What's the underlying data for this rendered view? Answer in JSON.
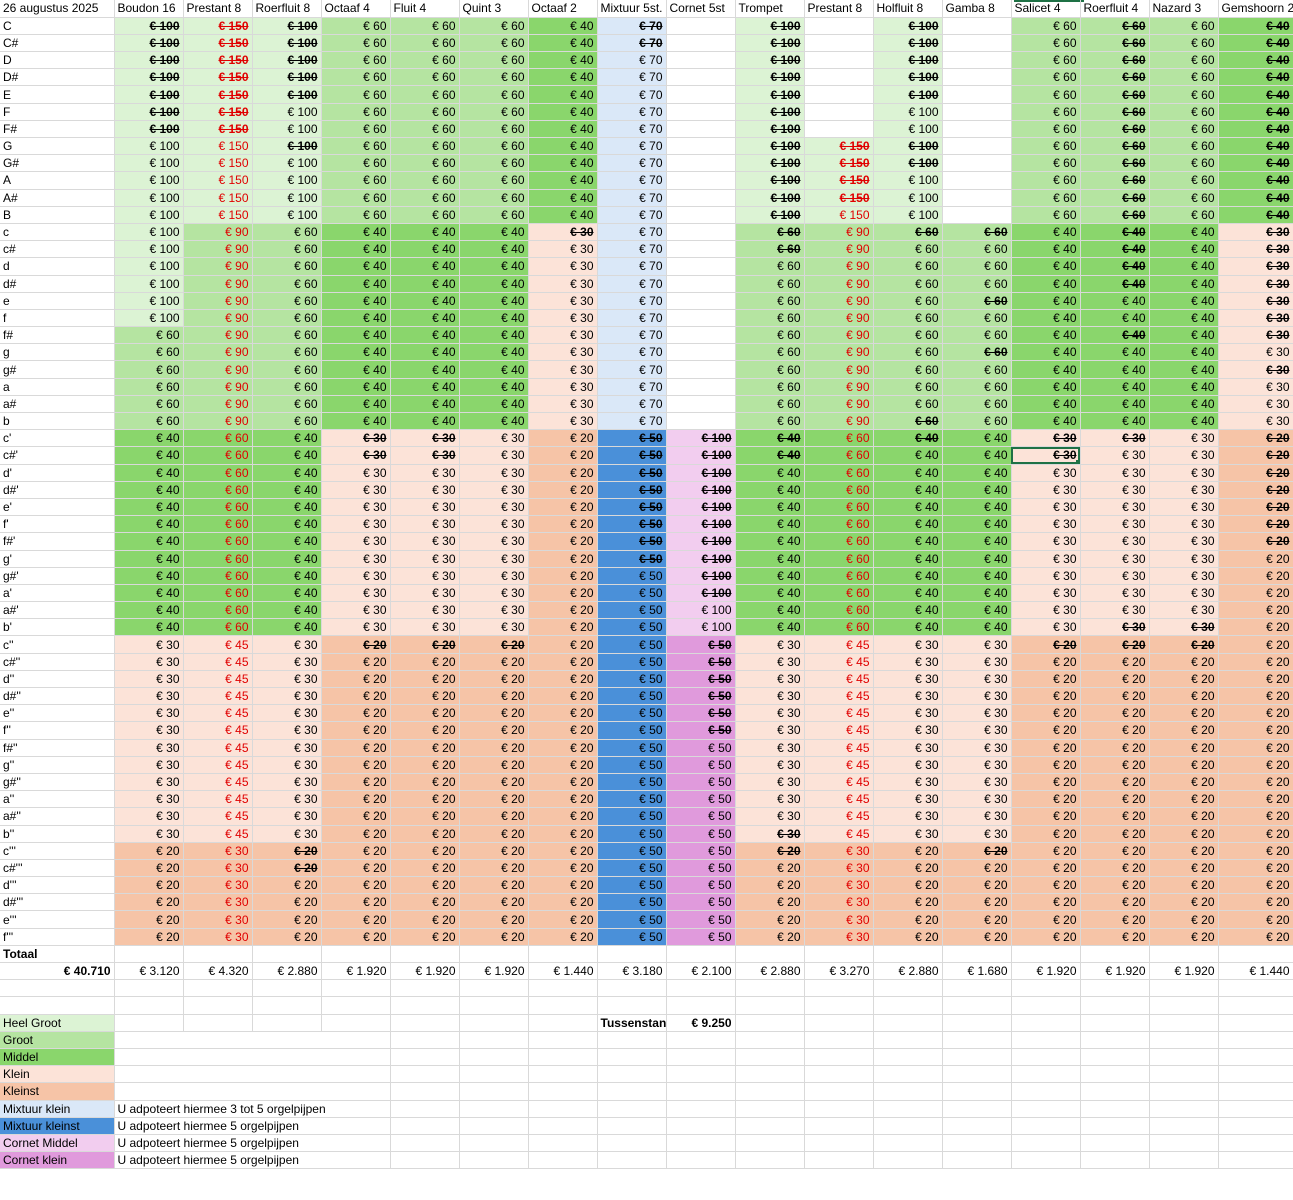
{
  "date": "26 augustus 2025",
  "stops": [
    {
      "name": "Boudon 16",
      "total": "€ 3.120"
    },
    {
      "name": "Prestant 8",
      "total": "€ 4.320"
    },
    {
      "name": "Roerfluit 8",
      "total": "€ 2.880"
    },
    {
      "name": "Octaaf 4",
      "total": "€ 1.920"
    },
    {
      "name": "Fluit 4",
      "total": "€ 1.920"
    },
    {
      "name": "Quint 3",
      "total": "€ 1.920"
    },
    {
      "name": "Octaaf 2",
      "total": "€ 1.440"
    },
    {
      "name": "Mixtuur 5st.",
      "total": "€ 3.180"
    },
    {
      "name": "Cornet 5st",
      "total": "€ 2.100"
    },
    {
      "name": "Trompet",
      "total": "€ 2.880"
    },
    {
      "name": "Prestant 8",
      "total": "€ 3.270"
    },
    {
      "name": "Holfluit 8",
      "total": "€ 2.880"
    },
    {
      "name": "Gamba 8",
      "total": "€ 1.680"
    },
    {
      "name": "Salicet 4",
      "total": "€ 1.920"
    },
    {
      "name": "Roerfluit 4",
      "total": "€ 1.920"
    },
    {
      "name": "Nazard 3",
      "total": "€ 1.920"
    },
    {
      "name": "Gemshoorn 2",
      "total": "€ 1.440"
    }
  ],
  "notes": [
    "C",
    "C#",
    "D",
    "D#",
    "E",
    "F",
    "F#",
    "G",
    "G#",
    "A",
    "A#",
    "B",
    "c",
    "c#",
    "d",
    "d#",
    "e",
    "f",
    "f#",
    "g",
    "g#",
    "a",
    "a#",
    "b",
    "c'",
    "c#'",
    "d'",
    "d#'",
    "e'",
    "f'",
    "f#'",
    "g'",
    "g#'",
    "a'",
    "a#'",
    "b'",
    "c''",
    "c#''",
    "d''",
    "d#''",
    "e''",
    "f''",
    "f#''",
    "g''",
    "g#''",
    "a''",
    "a#''",
    "b''",
    "c'''",
    "c#'''",
    "d'''",
    "d#'''",
    "e'''",
    "f'''"
  ],
  "rows": [
    [
      "€ 100",
      "€ 150",
      "€ 100",
      "€ 60",
      "€ 60",
      "€ 60",
      "€ 40",
      "€ 70",
      "",
      "€ 100",
      "",
      "€ 100",
      "",
      "€ 60",
      "€ 60",
      "€ 60",
      "€ 40"
    ],
    [
      "€ 100",
      "€ 150",
      "€ 100",
      "€ 60",
      "€ 60",
      "€ 60",
      "€ 40",
      "€ 70",
      "",
      "€ 100",
      "",
      "€ 100",
      "",
      "€ 60",
      "€ 60",
      "€ 60",
      "€ 40"
    ],
    [
      "€ 100",
      "€ 150",
      "€ 100",
      "€ 60",
      "€ 60",
      "€ 60",
      "€ 40",
      "€ 70",
      "",
      "€ 100",
      "",
      "€ 100",
      "",
      "€ 60",
      "€ 60",
      "€ 60",
      "€ 40"
    ],
    [
      "€ 100",
      "€ 150",
      "€ 100",
      "€ 60",
      "€ 60",
      "€ 60",
      "€ 40",
      "€ 70",
      "",
      "€ 100",
      "",
      "€ 100",
      "",
      "€ 60",
      "€ 60",
      "€ 60",
      "€ 40"
    ],
    [
      "€ 100",
      "€ 150",
      "€ 100",
      "€ 60",
      "€ 60",
      "€ 60",
      "€ 40",
      "€ 70",
      "",
      "€ 100",
      "",
      "€ 100",
      "",
      "€ 60",
      "€ 60",
      "€ 60",
      "€ 40"
    ],
    [
      "€ 100",
      "€ 150",
      "€ 100",
      "€ 60",
      "€ 60",
      "€ 60",
      "€ 40",
      "€ 70",
      "",
      "€ 100",
      "",
      "€ 100",
      "",
      "€ 60",
      "€ 60",
      "€ 60",
      "€ 40"
    ],
    [
      "€ 100",
      "€ 150",
      "€ 100",
      "€ 60",
      "€ 60",
      "€ 60",
      "€ 40",
      "€ 70",
      "",
      "€ 100",
      "",
      "€ 100",
      "",
      "€ 60",
      "€ 60",
      "€ 60",
      "€ 40"
    ],
    [
      "€ 100",
      "€ 150",
      "€ 100",
      "€ 60",
      "€ 60",
      "€ 60",
      "€ 40",
      "€ 70",
      "",
      "€ 100",
      "€ 150",
      "€ 100",
      "",
      "€ 60",
      "€ 60",
      "€ 60",
      "€ 40"
    ],
    [
      "€ 100",
      "€ 150",
      "€ 100",
      "€ 60",
      "€ 60",
      "€ 60",
      "€ 40",
      "€ 70",
      "",
      "€ 100",
      "€ 150",
      "€ 100",
      "",
      "€ 60",
      "€ 60",
      "€ 60",
      "€ 40"
    ],
    [
      "€ 100",
      "€ 150",
      "€ 100",
      "€ 60",
      "€ 60",
      "€ 60",
      "€ 40",
      "€ 70",
      "",
      "€ 100",
      "€ 150",
      "€ 100",
      "",
      "€ 60",
      "€ 60",
      "€ 60",
      "€ 40"
    ],
    [
      "€ 100",
      "€ 150",
      "€ 100",
      "€ 60",
      "€ 60",
      "€ 60",
      "€ 40",
      "€ 70",
      "",
      "€ 100",
      "€ 150",
      "€ 100",
      "",
      "€ 60",
      "€ 60",
      "€ 60",
      "€ 40"
    ],
    [
      "€ 100",
      "€ 150",
      "€ 100",
      "€ 60",
      "€ 60",
      "€ 60",
      "€ 40",
      "€ 70",
      "",
      "€ 100",
      "€ 150",
      "€ 100",
      "",
      "€ 60",
      "€ 60",
      "€ 60",
      "€ 40"
    ],
    [
      "€ 100",
      "€ 90",
      "€ 60",
      "€ 40",
      "€ 40",
      "€ 40",
      "€ 30",
      "€ 70",
      "",
      "€ 60",
      "€ 90",
      "€ 60",
      "€ 60",
      "€ 40",
      "€ 40",
      "€ 40",
      "€ 30"
    ],
    [
      "€ 100",
      "€ 90",
      "€ 60",
      "€ 40",
      "€ 40",
      "€ 40",
      "€ 30",
      "€ 70",
      "",
      "€ 60",
      "€ 90",
      "€ 60",
      "€ 60",
      "€ 40",
      "€ 40",
      "€ 40",
      "€ 30"
    ],
    [
      "€ 100",
      "€ 90",
      "€ 60",
      "€ 40",
      "€ 40",
      "€ 40",
      "€ 30",
      "€ 70",
      "",
      "€ 60",
      "€ 90",
      "€ 60",
      "€ 60",
      "€ 40",
      "€ 40",
      "€ 40",
      "€ 30"
    ],
    [
      "€ 100",
      "€ 90",
      "€ 60",
      "€ 40",
      "€ 40",
      "€ 40",
      "€ 30",
      "€ 70",
      "",
      "€ 60",
      "€ 90",
      "€ 60",
      "€ 60",
      "€ 40",
      "€ 40",
      "€ 40",
      "€ 30"
    ],
    [
      "€ 100",
      "€ 90",
      "€ 60",
      "€ 40",
      "€ 40",
      "€ 40",
      "€ 30",
      "€ 70",
      "",
      "€ 60",
      "€ 90",
      "€ 60",
      "€ 60",
      "€ 40",
      "€ 40",
      "€ 40",
      "€ 30"
    ],
    [
      "€ 100",
      "€ 90",
      "€ 60",
      "€ 40",
      "€ 40",
      "€ 40",
      "€ 30",
      "€ 70",
      "",
      "€ 60",
      "€ 90",
      "€ 60",
      "€ 60",
      "€ 40",
      "€ 40",
      "€ 40",
      "€ 30"
    ],
    [
      "€ 60",
      "€ 90",
      "€ 60",
      "€ 40",
      "€ 40",
      "€ 40",
      "€ 30",
      "€ 70",
      "",
      "€ 60",
      "€ 90",
      "€ 60",
      "€ 60",
      "€ 40",
      "€ 40",
      "€ 40",
      "€ 30"
    ],
    [
      "€ 60",
      "€ 90",
      "€ 60",
      "€ 40",
      "€ 40",
      "€ 40",
      "€ 30",
      "€ 70",
      "",
      "€ 60",
      "€ 90",
      "€ 60",
      "€ 60",
      "€ 40",
      "€ 40",
      "€ 40",
      "€ 30"
    ],
    [
      "€ 60",
      "€ 90",
      "€ 60",
      "€ 40",
      "€ 40",
      "€ 40",
      "€ 30",
      "€ 70",
      "",
      "€ 60",
      "€ 90",
      "€ 60",
      "€ 60",
      "€ 40",
      "€ 40",
      "€ 40",
      "€ 30"
    ],
    [
      "€ 60",
      "€ 90",
      "€ 60",
      "€ 40",
      "€ 40",
      "€ 40",
      "€ 30",
      "€ 70",
      "",
      "€ 60",
      "€ 90",
      "€ 60",
      "€ 60",
      "€ 40",
      "€ 40",
      "€ 40",
      "€ 30"
    ],
    [
      "€ 60",
      "€ 90",
      "€ 60",
      "€ 40",
      "€ 40",
      "€ 40",
      "€ 30",
      "€ 70",
      "",
      "€ 60",
      "€ 90",
      "€ 60",
      "€ 60",
      "€ 40",
      "€ 40",
      "€ 40",
      "€ 30"
    ],
    [
      "€ 60",
      "€ 90",
      "€ 60",
      "€ 40",
      "€ 40",
      "€ 40",
      "€ 30",
      "€ 70",
      "",
      "€ 60",
      "€ 90",
      "€ 60",
      "€ 60",
      "€ 40",
      "€ 40",
      "€ 40",
      "€ 30"
    ],
    [
      "€ 40",
      "€ 60",
      "€ 40",
      "€ 30",
      "€ 30",
      "€ 30",
      "€ 20",
      "€ 50",
      "€ 100",
      "€ 40",
      "€ 60",
      "€ 40",
      "€ 40",
      "€ 30",
      "€ 30",
      "€ 30",
      "€ 20"
    ],
    [
      "€ 40",
      "€ 60",
      "€ 40",
      "€ 30",
      "€ 30",
      "€ 30",
      "€ 20",
      "€ 50",
      "€ 100",
      "€ 40",
      "€ 60",
      "€ 40",
      "€ 40",
      "€ 30",
      "€ 30",
      "€ 30",
      "€ 20"
    ],
    [
      "€ 40",
      "€ 60",
      "€ 40",
      "€ 30",
      "€ 30",
      "€ 30",
      "€ 20",
      "€ 50",
      "€ 100",
      "€ 40",
      "€ 60",
      "€ 40",
      "€ 40",
      "€ 30",
      "€ 30",
      "€ 30",
      "€ 20"
    ],
    [
      "€ 40",
      "€ 60",
      "€ 40",
      "€ 30",
      "€ 30",
      "€ 30",
      "€ 20",
      "€ 50",
      "€ 100",
      "€ 40",
      "€ 60",
      "€ 40",
      "€ 40",
      "€ 30",
      "€ 30",
      "€ 30",
      "€ 20"
    ],
    [
      "€ 40",
      "€ 60",
      "€ 40",
      "€ 30",
      "€ 30",
      "€ 30",
      "€ 20",
      "€ 50",
      "€ 100",
      "€ 40",
      "€ 60",
      "€ 40",
      "€ 40",
      "€ 30",
      "€ 30",
      "€ 30",
      "€ 20"
    ],
    [
      "€ 40",
      "€ 60",
      "€ 40",
      "€ 30",
      "€ 30",
      "€ 30",
      "€ 20",
      "€ 50",
      "€ 100",
      "€ 40",
      "€ 60",
      "€ 40",
      "€ 40",
      "€ 30",
      "€ 30",
      "€ 30",
      "€ 20"
    ],
    [
      "€ 40",
      "€ 60",
      "€ 40",
      "€ 30",
      "€ 30",
      "€ 30",
      "€ 20",
      "€ 50",
      "€ 100",
      "€ 40",
      "€ 60",
      "€ 40",
      "€ 40",
      "€ 30",
      "€ 30",
      "€ 30",
      "€ 20"
    ],
    [
      "€ 40",
      "€ 60",
      "€ 40",
      "€ 30",
      "€ 30",
      "€ 30",
      "€ 20",
      "€ 50",
      "€ 100",
      "€ 40",
      "€ 60",
      "€ 40",
      "€ 40",
      "€ 30",
      "€ 30",
      "€ 30",
      "€ 20"
    ],
    [
      "€ 40",
      "€ 60",
      "€ 40",
      "€ 30",
      "€ 30",
      "€ 30",
      "€ 20",
      "€ 50",
      "€ 100",
      "€ 40",
      "€ 60",
      "€ 40",
      "€ 40",
      "€ 30",
      "€ 30",
      "€ 30",
      "€ 20"
    ],
    [
      "€ 40",
      "€ 60",
      "€ 40",
      "€ 30",
      "€ 30",
      "€ 30",
      "€ 20",
      "€ 50",
      "€ 100",
      "€ 40",
      "€ 60",
      "€ 40",
      "€ 40",
      "€ 30",
      "€ 30",
      "€ 30",
      "€ 20"
    ],
    [
      "€ 40",
      "€ 60",
      "€ 40",
      "€ 30",
      "€ 30",
      "€ 30",
      "€ 20",
      "€ 50",
      "€ 100",
      "€ 40",
      "€ 60",
      "€ 40",
      "€ 40",
      "€ 30",
      "€ 30",
      "€ 30",
      "€ 20"
    ],
    [
      "€ 40",
      "€ 60",
      "€ 40",
      "€ 30",
      "€ 30",
      "€ 30",
      "€ 20",
      "€ 50",
      "€ 100",
      "€ 40",
      "€ 60",
      "€ 40",
      "€ 40",
      "€ 30",
      "€ 30",
      "€ 30",
      "€ 20"
    ],
    [
      "€ 30",
      "€ 45",
      "€ 30",
      "€ 20",
      "€ 20",
      "€ 20",
      "€ 20",
      "€ 50",
      "€ 50",
      "€ 30",
      "€ 45",
      "€ 30",
      "€ 30",
      "€ 20",
      "€ 20",
      "€ 20",
      "€ 20"
    ],
    [
      "€ 30",
      "€ 45",
      "€ 30",
      "€ 20",
      "€ 20",
      "€ 20",
      "€ 20",
      "€ 50",
      "€ 50",
      "€ 30",
      "€ 45",
      "€ 30",
      "€ 30",
      "€ 20",
      "€ 20",
      "€ 20",
      "€ 20"
    ],
    [
      "€ 30",
      "€ 45",
      "€ 30",
      "€ 20",
      "€ 20",
      "€ 20",
      "€ 20",
      "€ 50",
      "€ 50",
      "€ 30",
      "€ 45",
      "€ 30",
      "€ 30",
      "€ 20",
      "€ 20",
      "€ 20",
      "€ 20"
    ],
    [
      "€ 30",
      "€ 45",
      "€ 30",
      "€ 20",
      "€ 20",
      "€ 20",
      "€ 20",
      "€ 50",
      "€ 50",
      "€ 30",
      "€ 45",
      "€ 30",
      "€ 30",
      "€ 20",
      "€ 20",
      "€ 20",
      "€ 20"
    ],
    [
      "€ 30",
      "€ 45",
      "€ 30",
      "€ 20",
      "€ 20",
      "€ 20",
      "€ 20",
      "€ 50",
      "€ 50",
      "€ 30",
      "€ 45",
      "€ 30",
      "€ 30",
      "€ 20",
      "€ 20",
      "€ 20",
      "€ 20"
    ],
    [
      "€ 30",
      "€ 45",
      "€ 30",
      "€ 20",
      "€ 20",
      "€ 20",
      "€ 20",
      "€ 50",
      "€ 50",
      "€ 30",
      "€ 45",
      "€ 30",
      "€ 30",
      "€ 20",
      "€ 20",
      "€ 20",
      "€ 20"
    ],
    [
      "€ 30",
      "€ 45",
      "€ 30",
      "€ 20",
      "€ 20",
      "€ 20",
      "€ 20",
      "€ 50",
      "€ 50",
      "€ 30",
      "€ 45",
      "€ 30",
      "€ 30",
      "€ 20",
      "€ 20",
      "€ 20",
      "€ 20"
    ],
    [
      "€ 30",
      "€ 45",
      "€ 30",
      "€ 20",
      "€ 20",
      "€ 20",
      "€ 20",
      "€ 50",
      "€ 50",
      "€ 30",
      "€ 45",
      "€ 30",
      "€ 30",
      "€ 20",
      "€ 20",
      "€ 20",
      "€ 20"
    ],
    [
      "€ 30",
      "€ 45",
      "€ 30",
      "€ 20",
      "€ 20",
      "€ 20",
      "€ 20",
      "€ 50",
      "€ 50",
      "€ 30",
      "€ 45",
      "€ 30",
      "€ 30",
      "€ 20",
      "€ 20",
      "€ 20",
      "€ 20"
    ],
    [
      "€ 30",
      "€ 45",
      "€ 30",
      "€ 20",
      "€ 20",
      "€ 20",
      "€ 20",
      "€ 50",
      "€ 50",
      "€ 30",
      "€ 45",
      "€ 30",
      "€ 30",
      "€ 20",
      "€ 20",
      "€ 20",
      "€ 20"
    ],
    [
      "€ 30",
      "€ 45",
      "€ 30",
      "€ 20",
      "€ 20",
      "€ 20",
      "€ 20",
      "€ 50",
      "€ 50",
      "€ 30",
      "€ 45",
      "€ 30",
      "€ 30",
      "€ 20",
      "€ 20",
      "€ 20",
      "€ 20"
    ],
    [
      "€ 30",
      "€ 45",
      "€ 30",
      "€ 20",
      "€ 20",
      "€ 20",
      "€ 20",
      "€ 50",
      "€ 50",
      "€ 30",
      "€ 45",
      "€ 30",
      "€ 30",
      "€ 20",
      "€ 20",
      "€ 20",
      "€ 20"
    ],
    [
      "€ 20",
      "€ 30",
      "€ 20",
      "€ 20",
      "€ 20",
      "€ 20",
      "€ 20",
      "€ 50",
      "€ 50",
      "€ 20",
      "€ 30",
      "€ 20",
      "€ 20",
      "€ 20",
      "€ 20",
      "€ 20",
      "€ 20"
    ],
    [
      "€ 20",
      "€ 30",
      "€ 20",
      "€ 20",
      "€ 20",
      "€ 20",
      "€ 20",
      "€ 50",
      "€ 50",
      "€ 20",
      "€ 30",
      "€ 20",
      "€ 20",
      "€ 20",
      "€ 20",
      "€ 20",
      "€ 20"
    ],
    [
      "€ 20",
      "€ 30",
      "€ 20",
      "€ 20",
      "€ 20",
      "€ 20",
      "€ 20",
      "€ 50",
      "€ 50",
      "€ 20",
      "€ 30",
      "€ 20",
      "€ 20",
      "€ 20",
      "€ 20",
      "€ 20",
      "€ 20"
    ],
    [
      "€ 20",
      "€ 30",
      "€ 20",
      "€ 20",
      "€ 20",
      "€ 20",
      "€ 20",
      "€ 50",
      "€ 50",
      "€ 20",
      "€ 30",
      "€ 20",
      "€ 20",
      "€ 20",
      "€ 20",
      "€ 20",
      "€ 20"
    ],
    [
      "€ 20",
      "€ 30",
      "€ 20",
      "€ 20",
      "€ 20",
      "€ 20",
      "€ 20",
      "€ 50",
      "€ 50",
      "€ 20",
      "€ 30",
      "€ 20",
      "€ 20",
      "€ 20",
      "€ 20",
      "€ 20",
      "€ 20"
    ],
    [
      "€ 20",
      "€ 30",
      "€ 20",
      "€ 20",
      "€ 20",
      "€ 20",
      "€ 20",
      "€ 50",
      "€ 50",
      "€ 20",
      "€ 30",
      "€ 20",
      "€ 20",
      "€ 20",
      "€ 20",
      "€ 20",
      "€ 20"
    ]
  ],
  "struck": {
    "0": [
      0,
      1,
      2,
      7,
      9,
      11,
      14,
      16
    ],
    "1": [
      0,
      1,
      2,
      7,
      9,
      11,
      14,
      16
    ],
    "2": [
      0,
      1,
      2,
      9,
      11,
      14,
      16
    ],
    "3": [
      0,
      1,
      2,
      9,
      11,
      14,
      16
    ],
    "4": [
      0,
      1,
      2,
      9,
      11,
      14,
      16
    ],
    "5": [
      0,
      1,
      9,
      14,
      16
    ],
    "6": [
      0,
      1,
      9,
      14,
      16
    ],
    "7": [
      2,
      9,
      10,
      11,
      14,
      16
    ],
    "8": [
      9,
      10,
      11,
      14,
      16
    ],
    "9": [
      9,
      10,
      14,
      16
    ],
    "10": [
      9,
      10,
      14,
      16
    ],
    "11": [
      9,
      14,
      16
    ],
    "12": [
      6,
      9,
      11,
      12,
      14,
      16
    ],
    "13": [
      9,
      14,
      16
    ],
    "14": [
      14,
      16
    ],
    "15": [
      14,
      16
    ],
    "16": [
      12,
      16
    ],
    "17": [
      16
    ],
    "18": [
      14,
      16
    ],
    "19": [
      12
    ],
    "20": [
      16
    ],
    "23": [
      11
    ],
    "24": [
      3,
      4,
      7,
      8,
      9,
      11,
      13,
      14,
      16
    ],
    "25": [
      3,
      4,
      7,
      8,
      9,
      13,
      16
    ],
    "26": [
      7,
      8,
      16
    ],
    "27": [
      7,
      8,
      16
    ],
    "28": [
      7,
      8,
      16
    ],
    "29": [
      7,
      8,
      16
    ],
    "30": [
      7,
      8,
      16
    ],
    "31": [
      7,
      8
    ],
    "32": [
      8
    ],
    "33": [
      8
    ],
    "35": [
      14,
      15
    ],
    "36": [
      3,
      4,
      5,
      8,
      13,
      14,
      15
    ],
    "37": [
      8
    ],
    "38": [
      8
    ],
    "39": [
      8
    ],
    "40": [
      8
    ],
    "41": [
      8
    ],
    "47": [
      9
    ],
    "48": [
      2,
      9,
      12
    ],
    "49": [
      2
    ]
  },
  "colors": {
    "heel_groot": "#dcf3d4",
    "groot": "#b5e4a1",
    "middel": "#8ad66c",
    "klein": "#fce3d8",
    "kleinst": "#f6c4a7",
    "mixtuur_klein": "#dae8f8",
    "mixtuur_kleinst": "#4a90d9",
    "cornet_middel": "#f2cdef",
    "cornet_klein": "#e09adc",
    "red_text": "#e00000",
    "selection": "#1e7145"
  },
  "summary": {
    "totaal_label": "Totaal",
    "grand_total": "€ 40.710",
    "tussenstand_label": "Tussenstand",
    "tussenstand_value": "€ 9.250"
  },
  "legend": [
    {
      "label": "Heel Groot",
      "color": "#dcf3d4",
      "text": ""
    },
    {
      "label": "Groot",
      "color": "#b5e4a1",
      "text": ""
    },
    {
      "label": "Middel",
      "color": "#8ad66c",
      "text": ""
    },
    {
      "label": "Klein",
      "color": "#fce3d8",
      "text": ""
    },
    {
      "label": "Kleinst",
      "color": "#f6c4a7",
      "text": ""
    },
    {
      "label": "Mixtuur klein",
      "color": "#dae8f8",
      "text": "U adpoteert hiermee 3 tot 5 orgelpijpen"
    },
    {
      "label": "Mixtuur kleinst",
      "color": "#4a90d9",
      "text": "U adpoteert hiermee 5 orgelpijpen"
    },
    {
      "label": "Cornet Middel",
      "color": "#f2cdef",
      "text": "U adpoteert hiermee 5 orgelpijpen"
    },
    {
      "label": "Cornet klein",
      "color": "#e09adc",
      "text": "U adpoteert hiermee 5 orgelpijpen"
    }
  ]
}
